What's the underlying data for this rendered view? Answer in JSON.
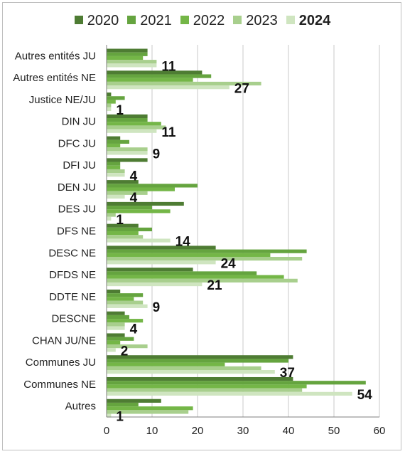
{
  "chart_data": {
    "type": "bar",
    "orientation": "horizontal",
    "categories": [
      "Autres entités JU",
      "Autres entités NE",
      "Justice NE/JU",
      "DIN JU",
      "DFC JU",
      "DFI JU",
      "DEN JU",
      "DES JU",
      "DFS NE",
      "DESC NE",
      "DFDS NE",
      "DDTE NE",
      "DESCNE",
      "CHAN JU/NE",
      "Communes JU",
      "Communes NE",
      "Autres"
    ],
    "series": [
      {
        "name": "2020",
        "color": "#4e7c33",
        "values": [
          9,
          21,
          1,
          9,
          3,
          9,
          7,
          17,
          7,
          24,
          19,
          3,
          4,
          4,
          41,
          41,
          12
        ]
      },
      {
        "name": "2021",
        "color": "#65a43f",
        "values": [
          9,
          23,
          4,
          9,
          5,
          3,
          20,
          10,
          10,
          44,
          33,
          8,
          5,
          6,
          40,
          57,
          7
        ]
      },
      {
        "name": "2022",
        "color": "#74b647",
        "values": [
          8,
          19,
          2,
          12,
          3,
          3,
          15,
          14,
          7,
          36,
          39,
          6,
          8,
          3,
          26,
          44,
          19
        ]
      },
      {
        "name": "2023",
        "color": "#a8cf8d",
        "values": [
          11,
          34,
          1,
          13,
          9,
          4,
          9,
          2,
          8,
          43,
          42,
          8,
          4,
          9,
          34,
          43,
          18
        ]
      },
      {
        "name": "2024",
        "color": "#cfe5c0",
        "values": [
          11,
          27,
          1,
          11,
          9,
          4,
          4,
          1,
          14,
          24,
          21,
          9,
          4,
          2,
          37,
          54,
          1
        ]
      }
    ],
    "data_labels_series": "2024",
    "legend": {
      "position": "top",
      "bold_entry": "2024"
    },
    "xlim": [
      0,
      60
    ],
    "xticks": [
      0,
      10,
      20,
      30,
      40,
      50,
      60
    ],
    "grid": "vertical",
    "title": "",
    "xlabel": "",
    "ylabel": ""
  }
}
